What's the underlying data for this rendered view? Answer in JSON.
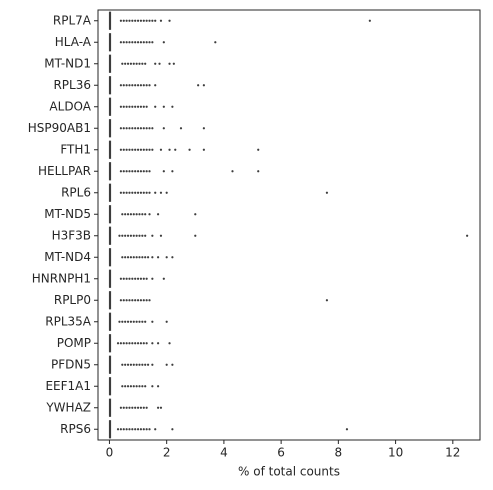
{
  "chart_data": {
    "type": "box",
    "xlabel": "% of total counts",
    "categories": [
      "RPL7A",
      "HLA-A",
      "MT-ND1",
      "RPL36",
      "ALDOA",
      "HSP90AB1",
      "FTH1",
      "HELLPAR",
      "RPL6",
      "MT-ND5",
      "H3F3B",
      "MT-ND4",
      "HNRNPH1",
      "RPLP0",
      "RPL35A",
      "POMP",
      "PFDN5",
      "EEF1A1",
      "YWHAZ",
      "RPS6"
    ],
    "boxes": [
      [
        0,
        0.01,
        0.04
      ],
      [
        0,
        0.01,
        0.04
      ],
      [
        0,
        0.01,
        0.04
      ],
      [
        0,
        0.01,
        0.04
      ],
      [
        0,
        0.01,
        0.04
      ],
      [
        0,
        0.01,
        0.04
      ],
      [
        0,
        0.01,
        0.04
      ],
      [
        0,
        0.01,
        0.04
      ],
      [
        0,
        0.01,
        0.04
      ],
      [
        0,
        0.01,
        0.04
      ],
      [
        0,
        0.01,
        0.04
      ],
      [
        0,
        0.01,
        0.04
      ],
      [
        0,
        0.01,
        0.04
      ],
      [
        0,
        0.01,
        0.04
      ],
      [
        0,
        0.01,
        0.04
      ],
      [
        0,
        0.01,
        0.04
      ],
      [
        0,
        0.01,
        0.04
      ],
      [
        0,
        0.01,
        0.04
      ],
      [
        0,
        0.01,
        0.04
      ],
      [
        0,
        0.01,
        0.04
      ]
    ],
    "outliers": [
      [
        0.4,
        0.5,
        0.6,
        0.7,
        0.8,
        0.9,
        1.0,
        1.1,
        1.2,
        1.3,
        1.4,
        1.5,
        1.6,
        1.8,
        2.1,
        9.1
      ],
      [
        0.4,
        0.5,
        0.6,
        0.7,
        0.8,
        0.9,
        1.0,
        1.1,
        1.2,
        1.3,
        1.4,
        1.5,
        1.9,
        3.7
      ],
      [
        0.45,
        0.55,
        0.65,
        0.75,
        0.85,
        0.95,
        1.05,
        1.15,
        1.25,
        1.6,
        1.75,
        2.1,
        2.25
      ],
      [
        0.4,
        0.5,
        0.6,
        0.7,
        0.8,
        0.9,
        1.0,
        1.1,
        1.2,
        1.3,
        1.4,
        1.6,
        3.1,
        3.3
      ],
      [
        0.4,
        0.5,
        0.6,
        0.7,
        0.8,
        0.9,
        1.0,
        1.1,
        1.2,
        1.3,
        1.6,
        1.9,
        2.2
      ],
      [
        0.4,
        0.5,
        0.6,
        0.7,
        0.8,
        0.9,
        1.0,
        1.1,
        1.2,
        1.3,
        1.4,
        1.5,
        1.9,
        2.5,
        3.3
      ],
      [
        0.4,
        0.5,
        0.6,
        0.7,
        0.8,
        0.9,
        1.0,
        1.1,
        1.2,
        1.3,
        1.4,
        1.5,
        1.8,
        2.1,
        2.3,
        2.8,
        3.3,
        5.2
      ],
      [
        0.4,
        0.5,
        0.6,
        0.7,
        0.8,
        0.9,
        1.0,
        1.1,
        1.2,
        1.3,
        1.4,
        1.9,
        2.2,
        4.3,
        5.2
      ],
      [
        0.4,
        0.5,
        0.6,
        0.7,
        0.8,
        0.9,
        1.0,
        1.1,
        1.2,
        1.3,
        1.4,
        1.6,
        1.8,
        2.0,
        7.6
      ],
      [
        0.45,
        0.55,
        0.65,
        0.75,
        0.85,
        0.95,
        1.05,
        1.15,
        1.25,
        1.4,
        1.7,
        3.0
      ],
      [
        0.35,
        0.45,
        0.55,
        0.65,
        0.75,
        0.85,
        0.95,
        1.05,
        1.15,
        1.25,
        1.5,
        1.8,
        3.0,
        12.5
      ],
      [
        0.45,
        0.55,
        0.65,
        0.75,
        0.85,
        0.95,
        1.05,
        1.15,
        1.25,
        1.35,
        1.5,
        1.7,
        2.0,
        2.2
      ],
      [
        0.4,
        0.5,
        0.6,
        0.7,
        0.8,
        0.9,
        1.0,
        1.1,
        1.2,
        1.3,
        1.5,
        1.9
      ],
      [
        0.4,
        0.5,
        0.6,
        0.7,
        0.8,
        0.9,
        1.0,
        1.1,
        1.2,
        1.3,
        1.4,
        7.6
      ],
      [
        0.35,
        0.45,
        0.55,
        0.65,
        0.75,
        0.85,
        0.95,
        1.05,
        1.15,
        1.25,
        1.5,
        2.0
      ],
      [
        0.3,
        0.4,
        0.5,
        0.6,
        0.7,
        0.8,
        0.9,
        1.0,
        1.1,
        1.2,
        1.3,
        1.5,
        1.7,
        2.1
      ],
      [
        0.45,
        0.55,
        0.65,
        0.75,
        0.85,
        0.95,
        1.05,
        1.15,
        1.25,
        1.35,
        1.5,
        2.0,
        2.2
      ],
      [
        0.45,
        0.55,
        0.65,
        0.75,
        0.85,
        0.95,
        1.05,
        1.15,
        1.25,
        1.5,
        1.7
      ],
      [
        0.4,
        0.5,
        0.6,
        0.7,
        0.8,
        0.9,
        1.0,
        1.1,
        1.2,
        1.3,
        1.7,
        1.8
      ],
      [
        0.3,
        0.4,
        0.5,
        0.6,
        0.7,
        0.8,
        0.9,
        1.0,
        1.1,
        1.2,
        1.3,
        1.4,
        1.6,
        2.2,
        8.3
      ]
    ],
    "color": "#3d3d3d",
    "xlim": [
      -0.4,
      12.95
    ],
    "xticks": [
      0,
      2,
      4,
      6,
      8,
      10,
      12
    ]
  }
}
